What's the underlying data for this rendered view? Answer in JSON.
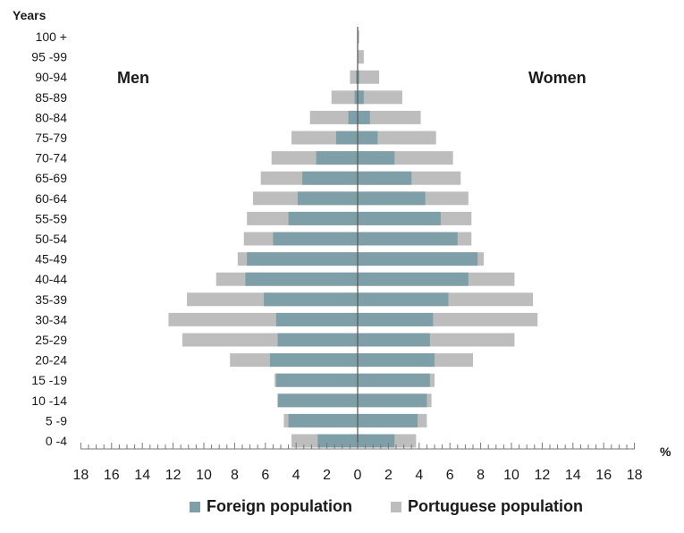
{
  "chart_data": {
    "type": "bar",
    "orientation": "horizontal-pyramid",
    "y_axis_title": "Years",
    "x_unit_label": "%",
    "left_label": "Men",
    "right_label": "Women",
    "categories": [
      "100 +",
      "95 -99",
      "90-94",
      "85-89",
      "80-84",
      "75-79",
      "70-74",
      "65-69",
      "60-64",
      "55-59",
      "50-54",
      "45-49",
      "40-44",
      "35-39",
      "30-34",
      "25-29",
      "20-24",
      "15 -19",
      "10 -14",
      "5 -9",
      "0 -4"
    ],
    "x_ticks": [
      18,
      16,
      14,
      12,
      10,
      8,
      6,
      4,
      2,
      0,
      2,
      4,
      6,
      8,
      10,
      12,
      14,
      16,
      18
    ],
    "xlim": [
      -18,
      18
    ],
    "series": [
      {
        "name": "Foreign population",
        "color": "#7f9fa8",
        "color_light": "#a9c4ca",
        "men": [
          0,
          0,
          0.1,
          0.2,
          0.6,
          1.4,
          2.7,
          3.6,
          3.9,
          4.5,
          5.5,
          7.2,
          7.3,
          6.1,
          5.3,
          5.2,
          5.7,
          5.3,
          5.2,
          4.5,
          2.6
        ],
        "women": [
          0,
          0,
          0.1,
          0.4,
          0.8,
          1.3,
          2.4,
          3.5,
          4.4,
          5.4,
          6.5,
          7.8,
          7.2,
          5.9,
          4.9,
          4.7,
          5.0,
          4.7,
          4.5,
          3.9,
          2.4
        ]
      },
      {
        "name": "Portuguese population",
        "color": "#bdbdbd",
        "men": [
          0,
          0,
          0.5,
          1.7,
          3.1,
          4.3,
          5.6,
          6.3,
          6.8,
          7.2,
          7.4,
          7.8,
          9.2,
          11.1,
          12.3,
          11.4,
          8.3,
          5.4,
          5.2,
          4.8,
          4.3
        ],
        "women": [
          0.1,
          0.4,
          1.4,
          2.9,
          4.1,
          5.1,
          6.2,
          6.7,
          7.2,
          7.4,
          7.4,
          8.2,
          10.2,
          11.4,
          11.7,
          10.2,
          7.5,
          5.0,
          4.8,
          4.5,
          3.8
        ]
      }
    ],
    "legend": {
      "position": "bottom",
      "items": [
        "Foreign population",
        "Portuguese population"
      ]
    }
  }
}
